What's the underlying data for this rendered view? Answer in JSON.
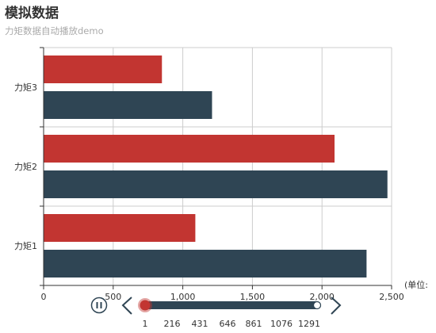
{
  "header": {
    "title": "模拟数据",
    "subtitle": "力矩数据自动播放demo"
  },
  "colors": {
    "series_a": "#c23531",
    "series_b": "#2f4554",
    "grid": "#cccccc",
    "axis": "#333333",
    "timeline_line": "#2f4554",
    "timeline_handle": "#c23531"
  },
  "chart_data": {
    "type": "bar",
    "orientation": "horizontal",
    "title": "模拟数据",
    "subtitle": "力矩数据自动播放demo",
    "categories": [
      "力矩1",
      "力矩2",
      "力矩3"
    ],
    "series": [
      {
        "values": [
          1090,
          2090,
          850
        ]
      },
      {
        "values": [
          2320,
          2470,
          1210
        ]
      }
    ],
    "x_ticks": [
      "0",
      "500",
      "1,000",
      "1,500",
      "2,000",
      "2,500"
    ],
    "xlim": [
      0,
      2500
    ],
    "x_unit_label": "(单位:",
    "grid": true
  },
  "timeline": {
    "ticks": [
      "1",
      "216",
      "431",
      "646",
      "861",
      "1076",
      "1291"
    ],
    "current": "1",
    "play_icon": "pause-icon",
    "prev_icon": "chevron-left-icon",
    "next_icon": "chevron-right-icon"
  }
}
